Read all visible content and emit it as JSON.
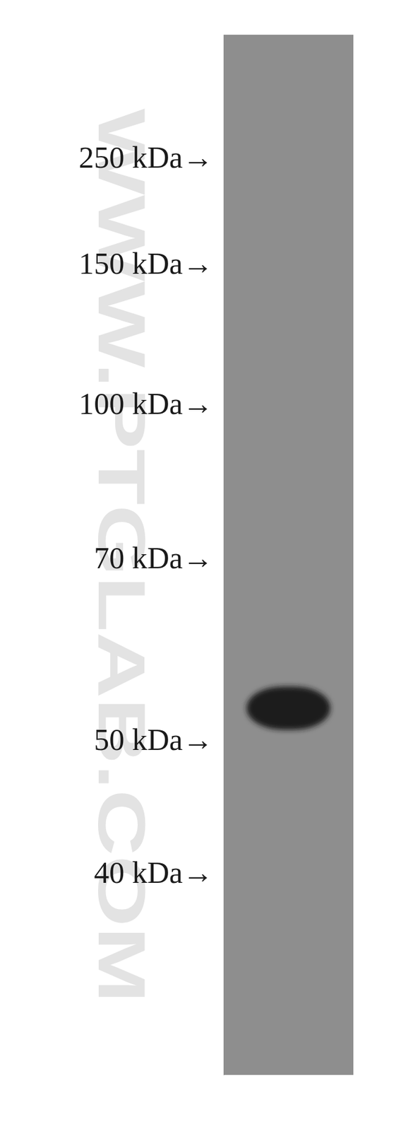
{
  "chart_data": {
    "type": "blot",
    "categories": [
      null
    ],
    "values": [
      53
    ],
    "color": "#1c1c1c",
    "log": "y",
    "ylim": [
      450,
      28
    ],
    "yticks": [
      {
        "value": 250,
        "label": "250 kDa→"
      },
      {
        "value": 150,
        "label": "150 kDa→"
      },
      {
        "value": 100,
        "label": "100 kDa→"
      },
      {
        "value": 70,
        "label": "70 kDa→"
      },
      {
        "value": 50,
        "label": "50 kDa→"
      },
      {
        "value": 40,
        "label": "40 kDa→"
      }
    ],
    "annotations": [
      "WWW.PTGLAB.COM"
    ]
  }
}
